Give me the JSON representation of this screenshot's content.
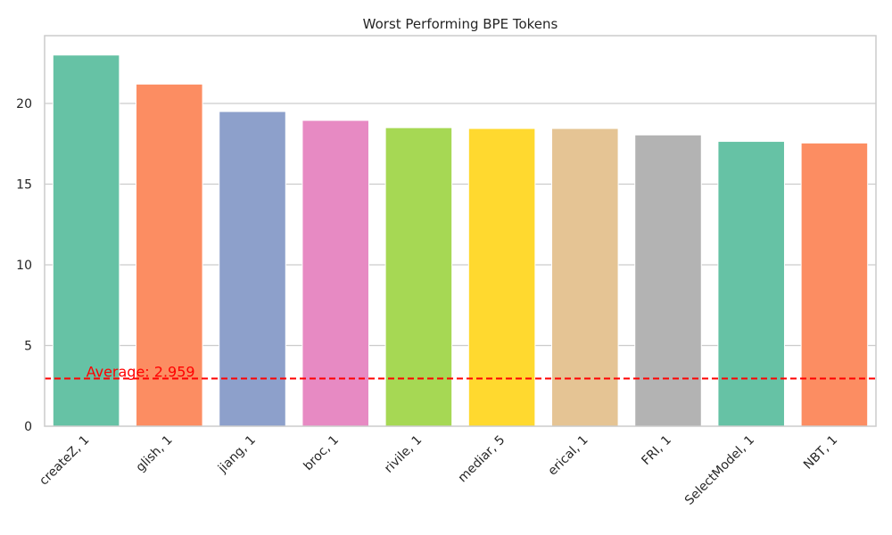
{
  "chart_data": {
    "type": "bar",
    "title": "Worst Performing BPE Tokens",
    "xlabel": "",
    "ylabel": "",
    "categories": [
      "createZ, 1",
      "glish, 1",
      "jiang, 1",
      "broc, 1",
      "rivile, 1",
      "mediar, 5",
      "erical, 1",
      "FRI, 1",
      "SelectModel, 1",
      "NBT, 1"
    ],
    "values": [
      23.0,
      21.2,
      19.5,
      18.95,
      18.5,
      18.45,
      18.45,
      18.05,
      17.65,
      17.55
    ],
    "colors": [
      "#66c2a5",
      "#fc8d62",
      "#8da0cb",
      "#e78ac3",
      "#a6d854",
      "#ffd92f",
      "#e5c494",
      "#b3b3b3",
      "#66c2a5",
      "#fc8d62"
    ],
    "ylim": [
      0,
      24.2
    ],
    "yticks": [
      0,
      5,
      10,
      15,
      20
    ],
    "ytick_labels": [
      "0",
      "5",
      "10",
      "15",
      "20"
    ],
    "grid": true,
    "average": {
      "value": 2.959,
      "label": "Average: 2.959",
      "color": "#ff0000",
      "style": "dashed"
    }
  }
}
